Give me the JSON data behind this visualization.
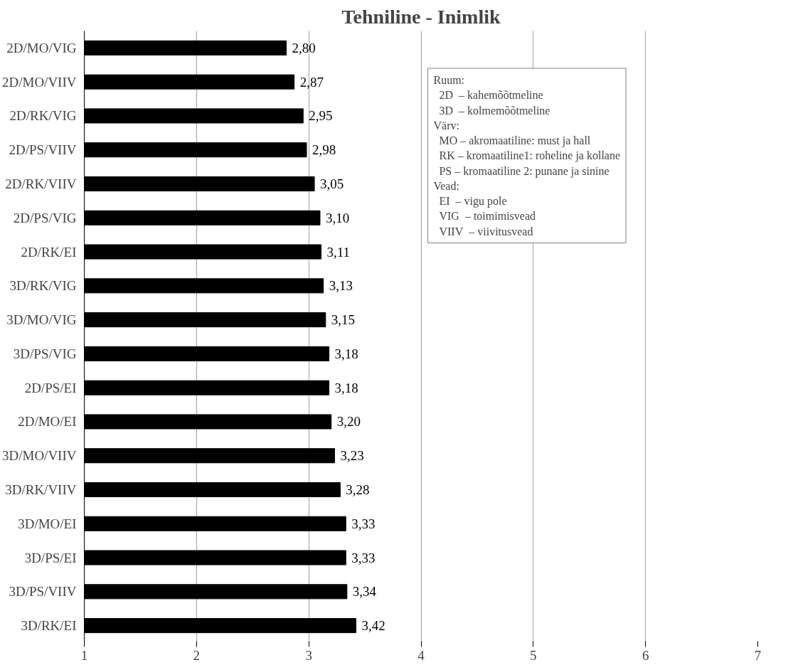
{
  "chart_data": {
    "type": "bar",
    "orientation": "horizontal",
    "title": "Tehniline - Inimlik",
    "categories": [
      "2D/MO/VIG",
      "2D/MO/VIIV",
      "2D/RK/VIG",
      "2D/PS/VIIV",
      "2D/RK/VIIV",
      "2D/PS/VIG",
      "2D/RK/EI",
      "3D/RK/VIG",
      "3D/MO/VIG",
      "3D/PS/VIG",
      "2D/PS/EI",
      "2D/MO/EI",
      "3D/MO/VIIV",
      "3D/RK/VIIV",
      "3D/MO/EI",
      "3D/PS/EI",
      "3D/PS/VIIV",
      "3D/RK/EI"
    ],
    "values": [
      2.8,
      2.87,
      2.95,
      2.98,
      3.05,
      3.1,
      3.11,
      3.13,
      3.15,
      3.18,
      3.18,
      3.2,
      3.23,
      3.28,
      3.33,
      3.33,
      3.34,
      3.42
    ],
    "value_labels": [
      "2,80",
      "2,87",
      "2,95",
      "2,98",
      "3,05",
      "3,10",
      "3,11",
      "3,13",
      "3,15",
      "3,18",
      "3,18",
      "3,20",
      "3,23",
      "3,28",
      "3,33",
      "3,33",
      "3,34",
      "3,42"
    ],
    "color": "#000000",
    "xlim": [
      1,
      7
    ],
    "xticks": [
      1,
      2,
      3,
      4,
      5,
      6,
      7
    ],
    "grid": "x",
    "annotations": [
      "Ruum:",
      "  2D  – kahemõõtmeline",
      "  3D  – kolmemõõtmeline",
      "Värv:",
      "  MO – akromaatiline: must ja hall",
      "  RK – kromaatiline1: roheline ja kollane",
      "  PS – kromaatiline 2: punane ja sinine",
      "Vead:",
      "  EI  – vigu pole",
      "  VIG  – toimimisvead",
      "  VIIV  – viivitusvead"
    ]
  }
}
